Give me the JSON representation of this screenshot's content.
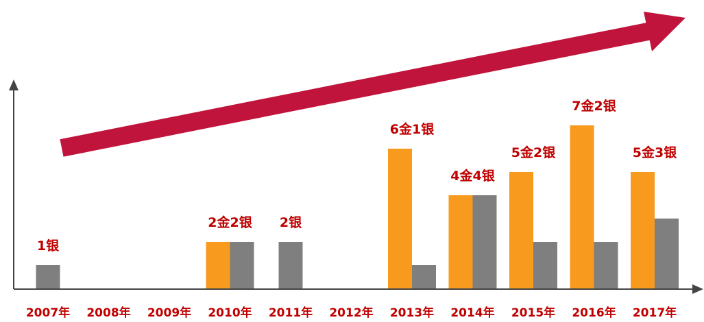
{
  "chart_data": {
    "type": "bar",
    "categories": [
      "2007年",
      "2008年",
      "2009年",
      "2010年",
      "2011年",
      "2012年",
      "2013年",
      "2014年",
      "2015年",
      "2016年",
      "2017年"
    ],
    "series": [
      {
        "color": "#f79a1e",
        "values": [
          0,
          0,
          0,
          2,
          0,
          0,
          6,
          4,
          5,
          7,
          5
        ]
      },
      {
        "color": "#7f7f7f",
        "values": [
          1,
          0,
          0,
          2,
          2,
          0,
          1,
          4,
          2,
          2,
          3
        ]
      }
    ],
    "value_labels": [
      "1银",
      null,
      null,
      "2金2银",
      "2银",
      null,
      "6金1银",
      "4金4银",
      "5金2银",
      "7金2银",
      "5金3银"
    ]
  }
}
